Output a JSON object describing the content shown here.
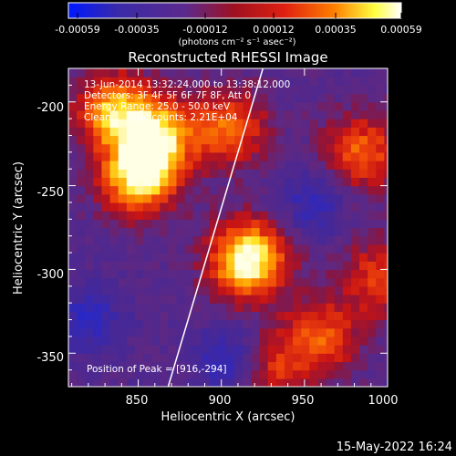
{
  "title": "Reconstructed RHESSI Image",
  "colorbar": {
    "ticks": [
      "-0.00059",
      "-0.00035",
      "-0.00012",
      "0.00012",
      "0.00035",
      "0.00059"
    ],
    "unit_label": "(photons cm⁻² s⁻¹ asec⁻²)",
    "range": [
      -0.00059,
      0.00059
    ]
  },
  "info": {
    "line1": "13-Jun-2014 13:32:24.000 to 13:38:12.000",
    "line2": "Detectors: 3F 4F 5F 6F 7F 8F, Att 0",
    "line3": "Energy Range: 25.0 - 50.0 keV",
    "line4": "Clean     Total counts: 2.21E+04"
  },
  "peak_label": "Position of Peak = [916,-294]",
  "footer_date": "15-May-2022 16:24",
  "colors": {
    "background": "#000000",
    "text": "#ffffff",
    "limb": "#ffffff"
  },
  "chart_data": {
    "type": "heatmap",
    "xlabel": "Heliocentric X (arcsec)",
    "ylabel": "Heliocentric Y (arcsec)",
    "xlim": [
      808,
      1000
    ],
    "ylim": [
      -370,
      -180
    ],
    "xticks": [
      "850",
      "900",
      "950",
      "1000"
    ],
    "yticks": [
      "-200",
      "-250",
      "-300",
      "-350"
    ],
    "xtick_values": [
      850,
      900,
      950,
      1000
    ],
    "ytick_values": [
      -200,
      -250,
      -300,
      -350
    ],
    "colormap": "blue-purple-red-yellow-white",
    "peak": {
      "x": 916,
      "y": -294
    },
    "sources": [
      {
        "x": 916,
        "y": -294,
        "amp": 1.0
      },
      {
        "x": 850,
        "y": -245,
        "amp": 0.85
      },
      {
        "x": 862,
        "y": -220,
        "amp": 0.75
      },
      {
        "x": 835,
        "y": -205,
        "amp": 0.7
      },
      {
        "x": 905,
        "y": -215,
        "amp": 0.55
      },
      {
        "x": 985,
        "y": -230,
        "amp": 0.55
      },
      {
        "x": 960,
        "y": -340,
        "amp": 0.5
      },
      {
        "x": 995,
        "y": -305,
        "amp": 0.45
      },
      {
        "x": 930,
        "y": -360,
        "amp": 0.4
      }
    ],
    "negative_sources": [
      {
        "x": 905,
        "y": -355,
        "amp": 0.6
      },
      {
        "x": 955,
        "y": -260,
        "amp": 0.45
      },
      {
        "x": 820,
        "y": -330,
        "amp": 0.5
      }
    ],
    "limb_points": [
      {
        "x": 925,
        "y": -180
      },
      {
        "x": 868,
        "y": -370
      }
    ]
  }
}
